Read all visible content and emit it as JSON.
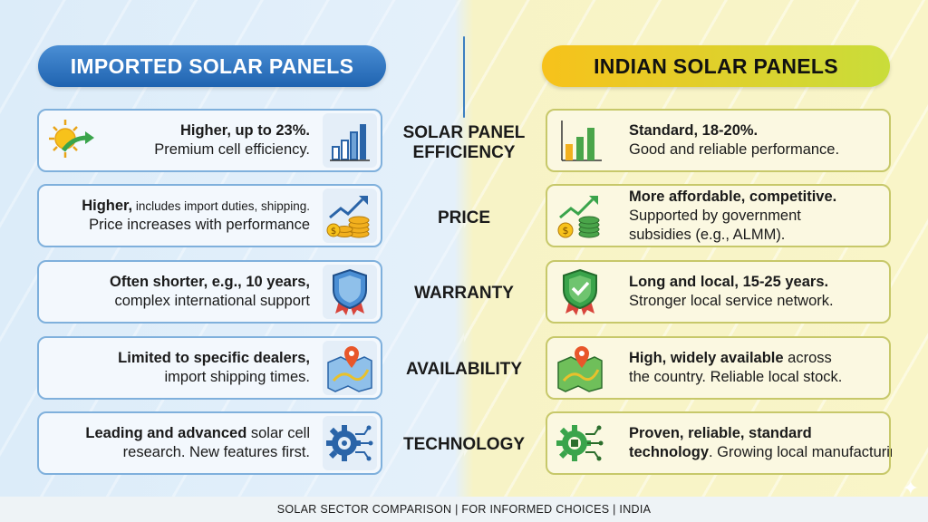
{
  "headers": {
    "left": "IMPORTED SOLAR PANELS",
    "right": "INDIAN SOLAR PANELS"
  },
  "rows": [
    {
      "category_line1": "SOLAR PANEL",
      "category_line2": "EFFICIENCY",
      "left_bold": "Higher, up to 23%.",
      "left_rest": "",
      "left_line2": "Premium cell efficiency.",
      "right_bold": "Standard, 18-20%.",
      "right_rest": "",
      "right_line2": "Good and reliable performance.",
      "right_line3": ""
    },
    {
      "category_line1": "PRICE",
      "left_bold": "Higher,",
      "left_rest": " includes import duties, shipping.",
      "left_line2": "Price increases with performance",
      "right_bold": "More affordable, competitive.",
      "right_rest": "",
      "right_line2": "Supported by government",
      "right_line3": "subsidies (e.g., ALMM)."
    },
    {
      "category_line1": "WARRANTY",
      "left_bold": "Often shorter,",
      "left_rest": " e.g., 10 years,",
      "left_line2": "complex international support",
      "right_bold": "Long and local, 15-25 years.",
      "right_rest": "",
      "right_line2": "Stronger local service network.",
      "right_line3": ""
    },
    {
      "category_line1": "AVAILABILITY",
      "left_bold": "Limited to specific dealers,",
      "left_rest": "",
      "left_line2": "import shipping times.",
      "right_bold": "High, widely available",
      "right_rest": " across",
      "right_line2": "the country. Reliable local stock.",
      "right_line3": ""
    },
    {
      "category_line1": "TECHNOLOGY",
      "left_bold": "Leading and advanced",
      "left_rest": " solar cell",
      "left_line2": "research. New features first.",
      "right_bold": "Proven, reliable, standard",
      "right_rest": "",
      "right_line2_bold": "technology",
      "right_line2": ". Growing local manufacturin",
      "right_line3": ""
    }
  ],
  "footer": "SOLAR SECTOR COMPARISON  | FOR INFORMED CHOICES  | INDIA",
  "colors": {
    "left_header": "#1f63b0",
    "right_header_start": "#f7c21b",
    "right_header_end": "#c9dd3a",
    "left_card_border": "#7fb0dc",
    "right_card_border": "#c7c86a"
  },
  "icons": {
    "row1_left_a": "sun-arrow-icon",
    "row1_left_b": "bar-chart-icon",
    "row1_right": "bar-chart-icon",
    "row2_left": "coins-growth-icon",
    "row2_right": "coins-growth-icon",
    "row3_left": "shield-ribbon-icon",
    "row3_right": "shield-check-icon",
    "row4_left": "map-pin-icon",
    "row4_right": "map-pin-icon",
    "row5_left": "gear-circuit-icon",
    "row5_right": "gear-circuit-icon"
  }
}
